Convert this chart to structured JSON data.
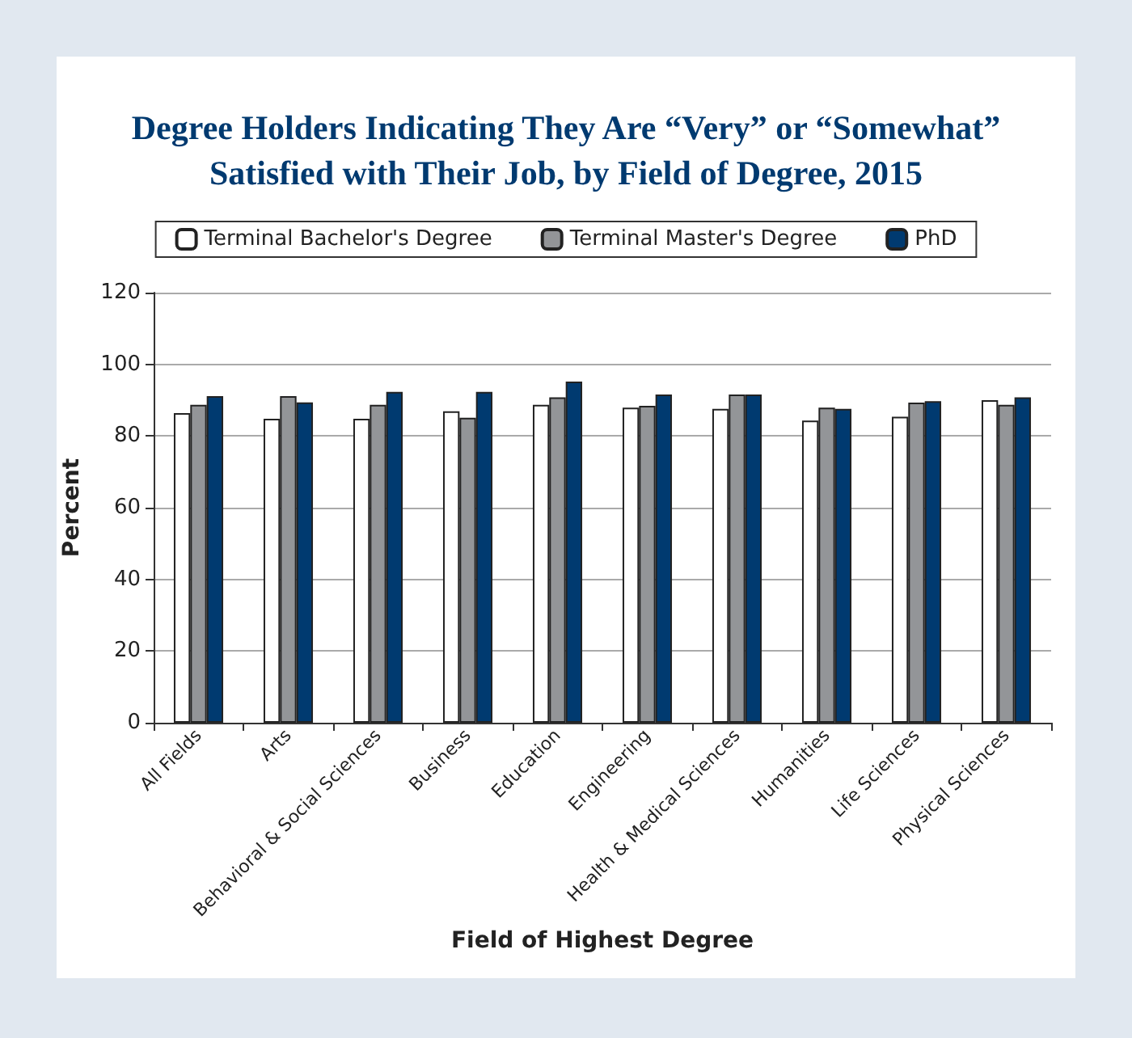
{
  "chart_data": {
    "type": "bar",
    "title": "Degree Holders Indicating They Are “Very” or “Somewhat”\nSatisfied with Their Job, by Field of Degree, 2015",
    "xlabel": "Field of Highest Degree",
    "ylabel": "Percent",
    "categories": [
      "All Fields",
      "Arts",
      "Behavioral & Social Sciences",
      "Business",
      "Education",
      "Engineering",
      "Health & Medical Sciences",
      "Humanities",
      "Life Sciences",
      "Physical Sciences"
    ],
    "series": [
      {
        "name": "Terminal Bachelor's Degree",
        "color": "#ffffff",
        "values": [
          86.4,
          84.8,
          84.8,
          86.9,
          88.7,
          87.9,
          87.6,
          84.3,
          85.4,
          90.0
        ]
      },
      {
        "name": "Terminal Master's Degree",
        "color": "#939598",
        "values": [
          88.7,
          91.1,
          88.7,
          85.1,
          90.8,
          88.4,
          91.6,
          87.9,
          89.3,
          88.7
        ]
      },
      {
        "name": "PhD",
        "color": "#003a70",
        "values": [
          91.1,
          89.4,
          92.3,
          92.3,
          95.2,
          91.6,
          91.6,
          87.6,
          89.7,
          90.8
        ]
      }
    ],
    "ylim": [
      0,
      120
    ],
    "yticks": [
      0,
      20,
      40,
      60,
      80,
      100,
      120
    ],
    "grid": "y",
    "legend": "top"
  }
}
